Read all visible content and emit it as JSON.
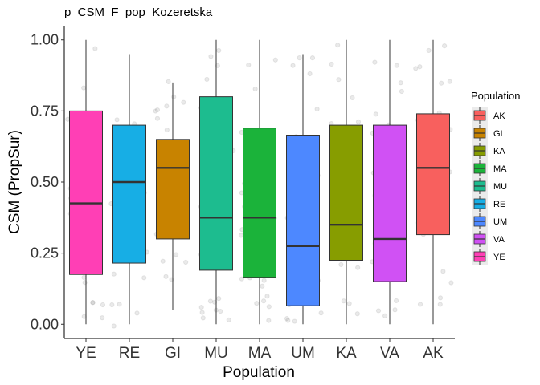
{
  "chart_data": {
    "type": "box",
    "title": "p_CSM_F_pop_Kozeretska",
    "xlabel": "Population",
    "ylabel": "CSM (PropSur)",
    "ylim": [
      -0.05,
      1.05
    ],
    "yticks": [
      "0.00",
      "0.25",
      "0.50",
      "0.75",
      "1.00"
    ],
    "categories": [
      "YE",
      "RE",
      "GI",
      "MU",
      "MA",
      "UM",
      "KA",
      "VA",
      "AK"
    ],
    "series": [
      {
        "category": "YE",
        "min": 0.0,
        "q1": 0.175,
        "median": 0.425,
        "q3": 0.75,
        "max": 1.0,
        "color": "#FF3FB5"
      },
      {
        "category": "RE",
        "min": 0.0,
        "q1": 0.215,
        "median": 0.5,
        "q3": 0.7,
        "max": 0.95,
        "color": "#17AEE5"
      },
      {
        "category": "GI",
        "min": 0.05,
        "q1": 0.3,
        "median": 0.55,
        "q3": 0.65,
        "max": 0.85,
        "color": "#C88300"
      },
      {
        "category": "MU",
        "min": 0.0,
        "q1": 0.19,
        "median": 0.375,
        "q3": 0.8,
        "max": 1.0,
        "color": "#1DBC8F"
      },
      {
        "category": "MA",
        "min": 0.0,
        "q1": 0.165,
        "median": 0.375,
        "q3": 0.69,
        "max": 1.0,
        "color": "#1BB33A"
      },
      {
        "category": "UM",
        "min": 0.0,
        "q1": 0.065,
        "median": 0.275,
        "q3": 0.665,
        "max": 0.95,
        "color": "#4D88FF"
      },
      {
        "category": "KA",
        "min": 0.0,
        "q1": 0.225,
        "median": 0.35,
        "q3": 0.7,
        "max": 1.0,
        "color": "#879D00"
      },
      {
        "category": "VA",
        "min": 0.0,
        "q1": 0.15,
        "median": 0.3,
        "q3": 0.7,
        "max": 1.0,
        "color": "#D051F4"
      },
      {
        "category": "AK",
        "min": 0.0,
        "q1": 0.315,
        "median": 0.55,
        "q3": 0.74,
        "max": 1.0,
        "color": "#F8605E"
      }
    ],
    "legend": {
      "title": "Population",
      "position": "right",
      "entries": [
        {
          "label": "AK",
          "color": "#F8605E"
        },
        {
          "label": "GI",
          "color": "#C88300"
        },
        {
          "label": "KA",
          "color": "#879D00"
        },
        {
          "label": "MA",
          "color": "#1BB33A"
        },
        {
          "label": "MU",
          "color": "#1DBC8F"
        },
        {
          "label": "RE",
          "color": "#17AEE5"
        },
        {
          "label": "UM",
          "color": "#4D88FF"
        },
        {
          "label": "VA",
          "color": "#D051F4"
        },
        {
          "label": "YE",
          "color": "#FF3FB5"
        }
      ]
    },
    "grid": false,
    "jitter_points": true
  }
}
